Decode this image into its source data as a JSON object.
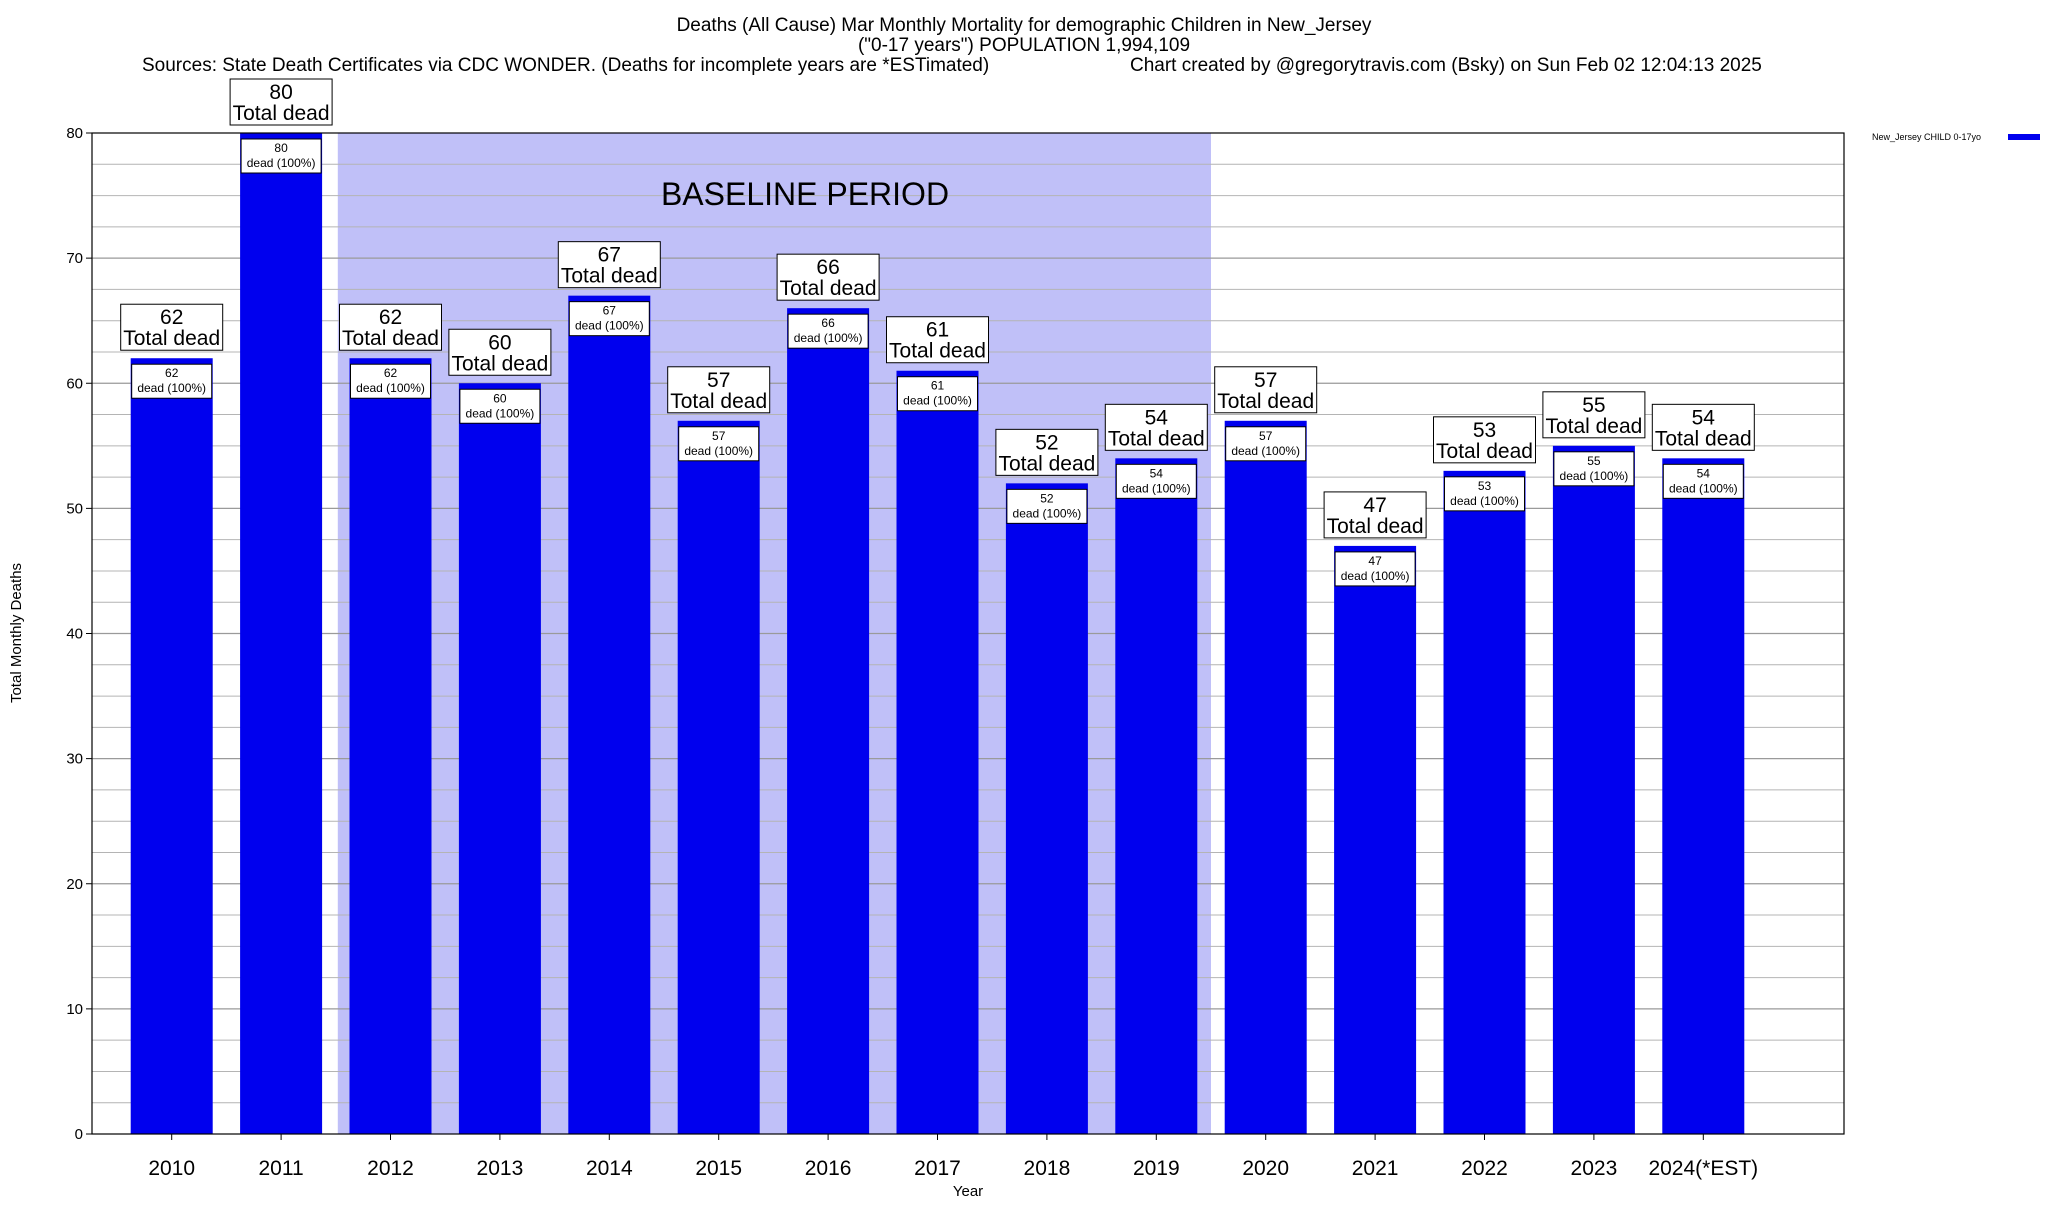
{
  "title_lines": [
    "Deaths (All Cause) Mar Monthly Mortality for demographic Children in New_Jersey",
    "(\"0-17 years\") POPULATION 1,994,109"
  ],
  "source_text": "Sources: State Death Certificates via CDC WONDER. (Deaths for incomplete years are *ESTimated)",
  "credit_text": "Chart created by @gregorytravis.com (Bsky) on Sun Feb 02 12:04:13 2025",
  "baseline_label": "BASELINE PERIOD",
  "colors": {
    "bar": "#0000ee",
    "baseline_band": "#c0c0f8",
    "grid": "#b4b4b4"
  },
  "chart_data": {
    "type": "bar",
    "xlabel": "Year",
    "ylabel": "Total Monthly Deaths",
    "ylim": [
      0,
      80
    ],
    "yticks": [
      0,
      10,
      20,
      30,
      40,
      50,
      60,
      70,
      80
    ],
    "grid": true,
    "legend_position": "top-right",
    "categories": [
      "2010",
      "2011",
      "2012",
      "2013",
      "2014",
      "2015",
      "2016",
      "2017",
      "2018",
      "2019",
      "2020",
      "2021",
      "2022",
      "2023",
      "2024(*EST)"
    ],
    "series": [
      {
        "name": "New_Jersey CHILD 0-17yo",
        "values": [
          62,
          80,
          62,
          60,
          67,
          57,
          66,
          61,
          52,
          54,
          57,
          47,
          53,
          55,
          54
        ]
      }
    ],
    "value_label_caption": "Total dead",
    "inner_label_caption": "dead (100%)",
    "baseline_period": [
      "2012",
      "2019"
    ]
  }
}
